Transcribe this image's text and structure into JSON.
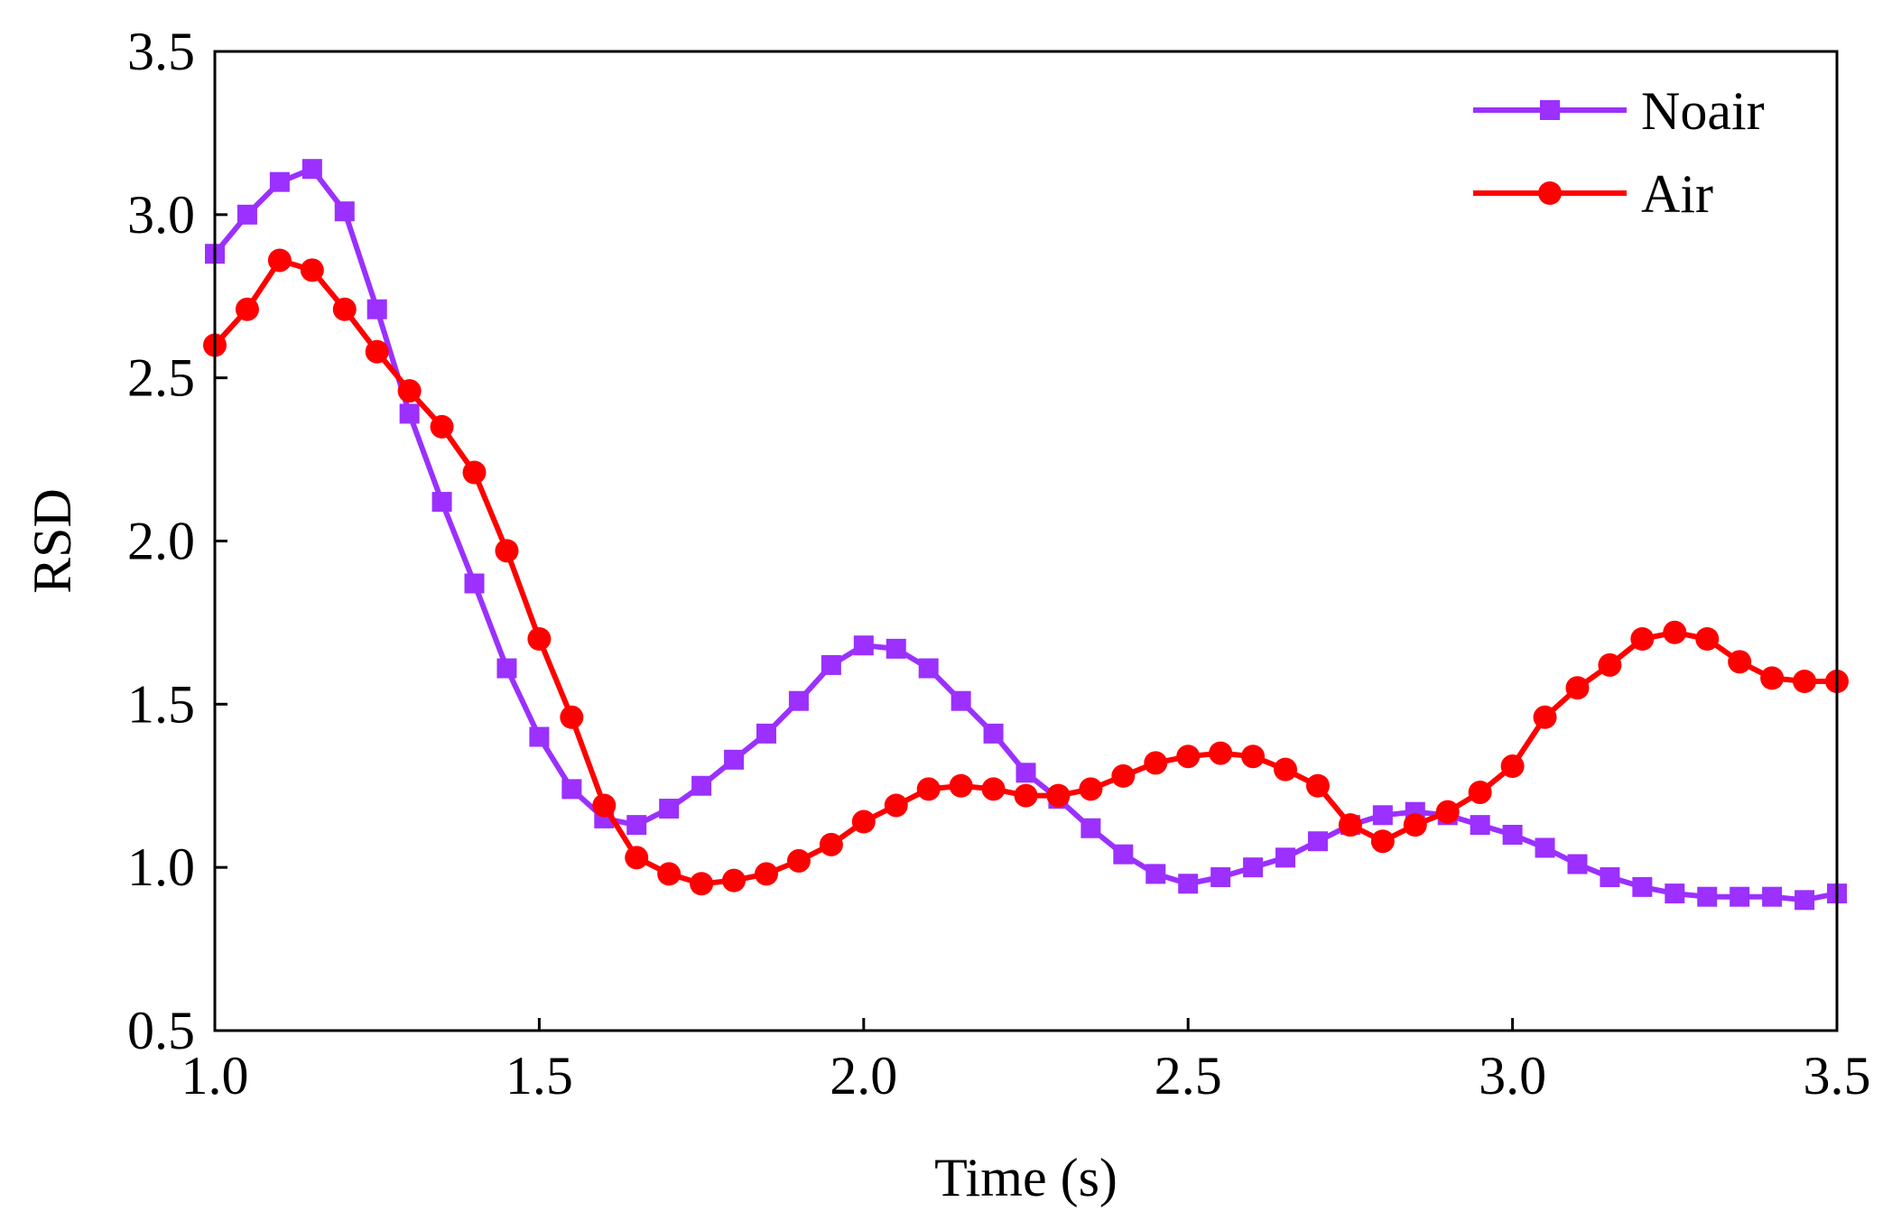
{
  "chart_data": {
    "type": "line",
    "xlabel": "Time (s)",
    "ylabel": "RSD",
    "xlim": [
      1.0,
      3.5
    ],
    "ylim": [
      0.5,
      3.5
    ],
    "xticks": [
      "1.0",
      "1.5",
      "2.0",
      "2.5",
      "3.0",
      "3.5"
    ],
    "yticks": [
      "0.5",
      "1.0",
      "1.5",
      "2.0",
      "2.5",
      "3.0",
      "3.5"
    ],
    "grid": false,
    "legend_position": "top-right",
    "x": [
      1.0,
      1.05,
      1.1,
      1.15,
      1.2,
      1.25,
      1.3,
      1.35,
      1.4,
      1.45,
      1.5,
      1.55,
      1.6,
      1.65,
      1.7,
      1.75,
      1.8,
      1.85,
      1.9,
      1.95,
      2.0,
      2.05,
      2.1,
      2.15,
      2.2,
      2.25,
      2.3,
      2.35,
      2.4,
      2.45,
      2.5,
      2.55,
      2.6,
      2.65,
      2.7,
      2.75,
      2.8,
      2.85,
      2.9,
      2.95,
      3.0,
      3.05,
      3.1,
      3.15,
      3.2,
      3.25,
      3.3,
      3.35,
      3.4,
      3.45,
      3.5
    ],
    "series": [
      {
        "name": "Noair",
        "color": "#9B30FF",
        "marker": "square",
        "values": [
          2.88,
          3.0,
          3.1,
          3.14,
          3.01,
          2.71,
          2.39,
          2.12,
          1.87,
          1.61,
          1.4,
          1.24,
          1.15,
          1.13,
          1.18,
          1.25,
          1.33,
          1.41,
          1.51,
          1.62,
          1.68,
          1.67,
          1.61,
          1.51,
          1.41,
          1.29,
          1.21,
          1.12,
          1.04,
          0.98,
          0.95,
          0.97,
          1.0,
          1.03,
          1.08,
          1.13,
          1.16,
          1.17,
          1.16,
          1.13,
          1.1,
          1.06,
          1.01,
          0.97,
          0.94,
          0.92,
          0.91,
          0.91,
          0.91,
          0.9,
          0.92
        ]
      },
      {
        "name": "Air",
        "color": "#FF0000",
        "marker": "circle",
        "values": [
          2.6,
          2.71,
          2.86,
          2.83,
          2.71,
          2.58,
          2.46,
          2.35,
          2.21,
          1.97,
          1.7,
          1.46,
          1.19,
          1.03,
          0.98,
          0.95,
          0.96,
          0.98,
          1.02,
          1.07,
          1.14,
          1.19,
          1.24,
          1.25,
          1.24,
          1.22,
          1.22,
          1.24,
          1.28,
          1.32,
          1.34,
          1.35,
          1.34,
          1.3,
          1.25,
          1.13,
          1.08,
          1.13,
          1.17,
          1.23,
          1.31,
          1.46,
          1.55,
          1.62,
          1.7,
          1.72,
          1.7,
          1.63,
          1.58,
          1.57,
          1.57
        ]
      }
    ]
  }
}
